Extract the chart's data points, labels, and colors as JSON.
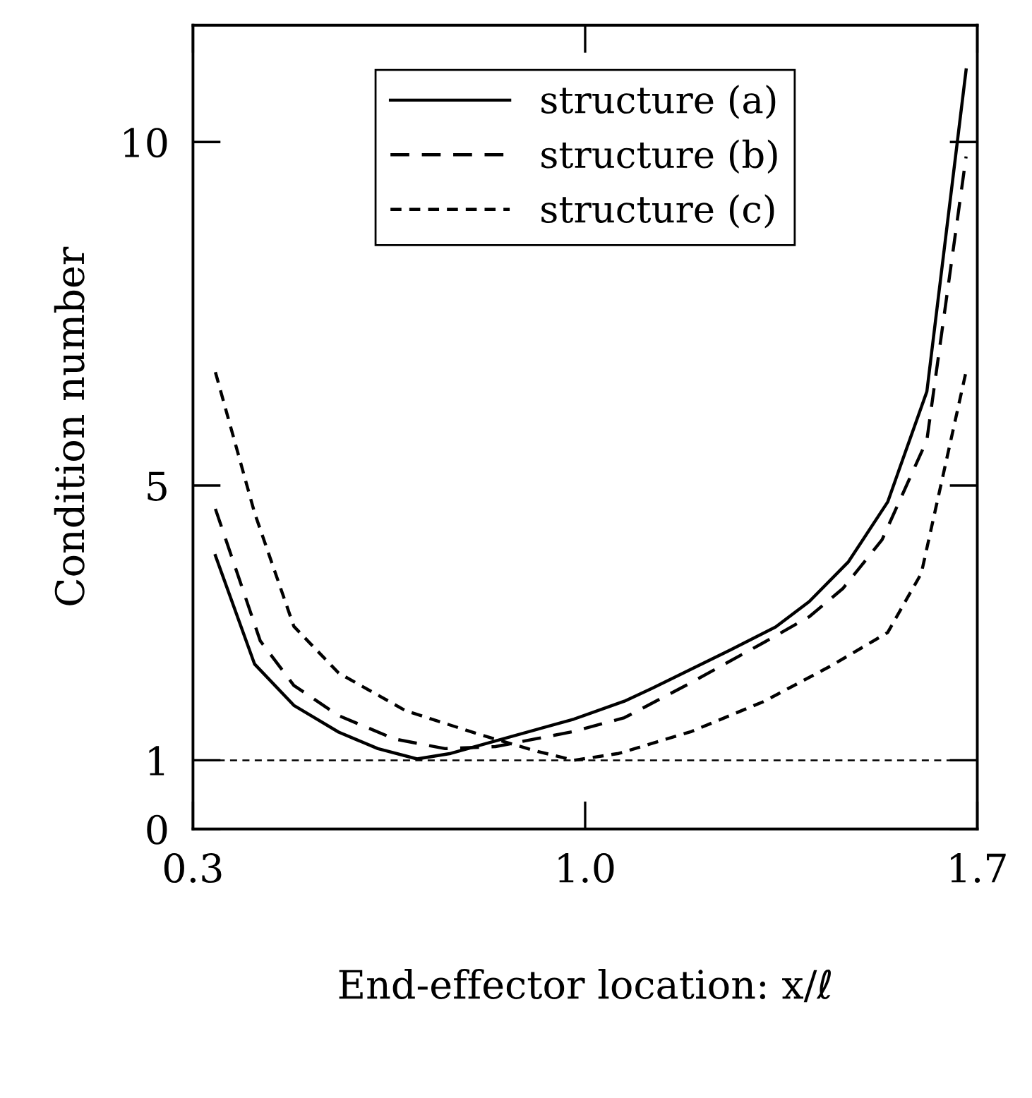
{
  "chart_data": {
    "type": "line",
    "xlabel": "End-effector location: x/ℓ",
    "ylabel": "Condition number",
    "xlim": [
      0.3,
      1.7
    ],
    "xticks": [
      0.3,
      {
        "value": 1.0,
        "label": "1.0"
      },
      1.7
    ],
    "ylim": [
      0,
      11.7
    ],
    "yticks": [
      0,
      1,
      5,
      10
    ],
    "grid": false,
    "legend": "top",
    "series": [
      {
        "name": "structure (a)",
        "color": "#000000",
        "line_style": "solid",
        "x": [
          0.34,
          0.41,
          0.48,
          0.56,
          0.63,
          0.7,
          0.76,
          0.98,
          1.07,
          1.12,
          1.26,
          1.34,
          1.4,
          1.47,
          1.54,
          1.61,
          1.68
        ],
        "values": [
          3.98,
          2.4,
          1.8,
          1.41,
          1.17,
          1.02,
          1.1,
          1.6,
          1.86,
          2.05,
          2.61,
          2.94,
          3.31,
          3.89,
          4.76,
          6.37,
          11.05
        ]
      },
      {
        "name": "structure (b)",
        "color": "#000000",
        "line_style": "dashed",
        "x": [
          0.34,
          0.42,
          0.48,
          0.56,
          0.66,
          0.75,
          0.84,
          0.98,
          1.07,
          1.18,
          1.32,
          1.4,
          1.46,
          1.53,
          1.61,
          1.68
        ],
        "values": [
          4.66,
          2.74,
          2.09,
          1.65,
          1.31,
          1.17,
          1.2,
          1.42,
          1.62,
          2.09,
          2.72,
          3.09,
          3.5,
          4.21,
          5.66,
          9.79
        ]
      },
      {
        "name": "structure (c)",
        "color": "#000000",
        "line_style": "dotted",
        "x": [
          0.34,
          0.41,
          0.48,
          0.56,
          0.68,
          0.81,
          0.91,
          0.98,
          1.06,
          1.19,
          1.32,
          1.44,
          1.54,
          1.6,
          1.68
        ],
        "values": [
          6.65,
          4.6,
          2.95,
          2.27,
          1.72,
          1.38,
          1.14,
          1.0,
          1.1,
          1.42,
          1.86,
          2.38,
          2.86,
          3.72,
          6.66
        ]
      }
    ],
    "ref_lines": [
      {
        "axis": "y",
        "value": 1,
        "color": "#000000",
        "line_style": "dashed"
      }
    ]
  }
}
